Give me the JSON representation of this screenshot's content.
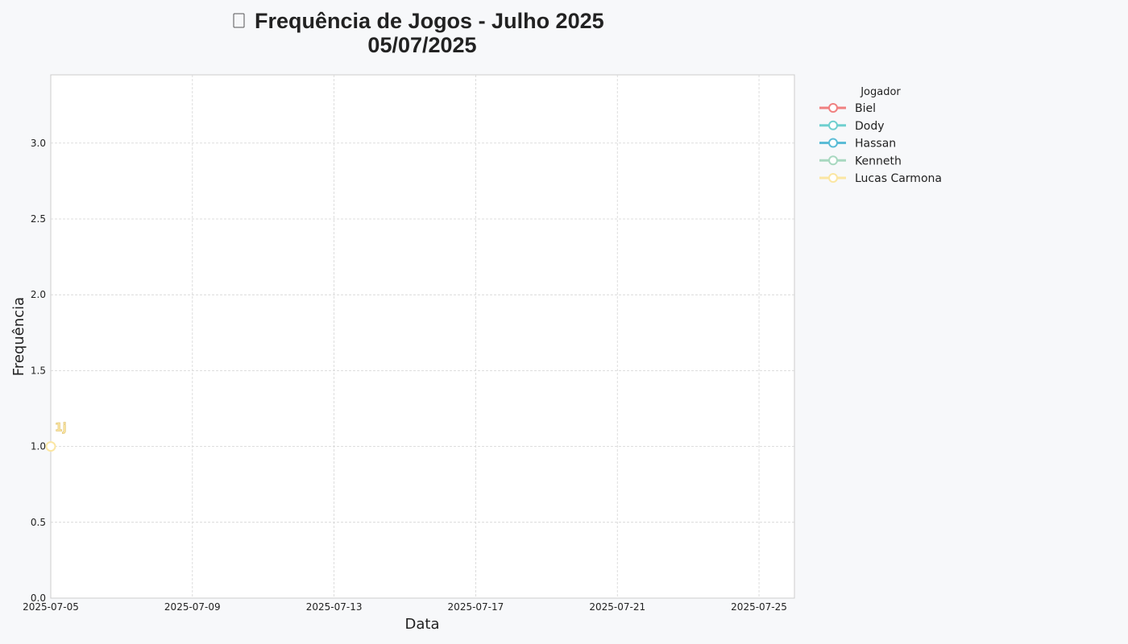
{
  "chart_data": {
    "type": "line",
    "title_icon": "chart-icon",
    "title_line1": "Frequência de Jogos - Julho 2025",
    "title_line2": "05/07/2025",
    "xlabel": "Data",
    "ylabel": "Frequência",
    "xlim": [
      "2025-07-05",
      "2025-07-26"
    ],
    "ylim": [
      0,
      3.45
    ],
    "x_ticks": [
      "2025-07-05",
      "2025-07-09",
      "2025-07-13",
      "2025-07-17",
      "2025-07-21",
      "2025-07-25"
    ],
    "y_ticks": [
      "0.0",
      "0.5",
      "1.0",
      "1.5",
      "2.0",
      "2.5",
      "3.0"
    ],
    "grid": true,
    "legend_title": "Jogador",
    "legend_position": "outside-right",
    "series": [
      {
        "name": "Biel",
        "color": "#f08080",
        "points": []
      },
      {
        "name": "Dody",
        "color": "#6fcfcf",
        "points": []
      },
      {
        "name": "Hassan",
        "color": "#5bbcd6",
        "points": []
      },
      {
        "name": "Kenneth",
        "color": "#a8d8c0",
        "points": []
      },
      {
        "name": "Lucas Carmona",
        "color": "#fbe6a2",
        "points": [
          {
            "x": "2025-07-05",
            "y": 1.0,
            "label": "1j"
          }
        ]
      }
    ]
  }
}
